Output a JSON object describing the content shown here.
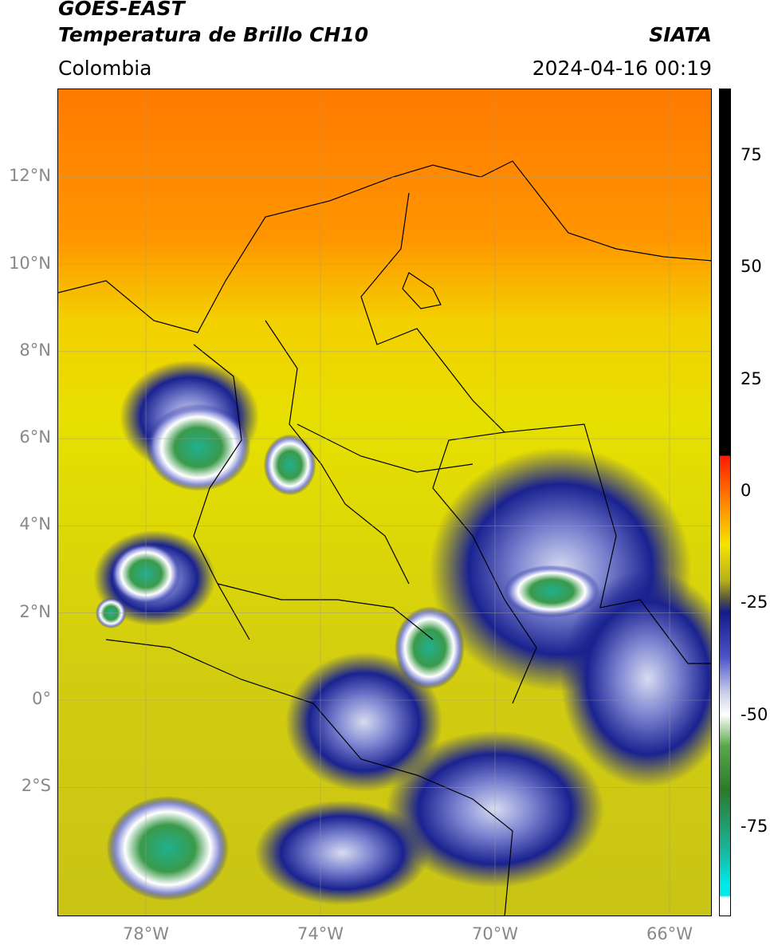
{
  "header": {
    "satellite": "GOES-EAST",
    "product": "Temperatura de Brillo CH10",
    "region": "Colombia",
    "organization": "SIATA",
    "timestamp": "2024-04-16 00:19"
  },
  "map": {
    "lon_range": [
      -80,
      -65
    ],
    "lat_range": [
      -5,
      14
    ],
    "lat_ticks": [
      {
        "value": 12,
        "label": "12°N"
      },
      {
        "value": 10,
        "label": "10°N"
      },
      {
        "value": 8,
        "label": "8°N"
      },
      {
        "value": 6,
        "label": "6°N"
      },
      {
        "value": 4,
        "label": "4°N"
      },
      {
        "value": 2,
        "label": "2°N"
      },
      {
        "value": 0,
        "label": "0°"
      },
      {
        "value": -2,
        "label": "2°S"
      }
    ],
    "lon_ticks": [
      {
        "value": -78,
        "label": "78°W"
      },
      {
        "value": -74,
        "label": "74°W"
      },
      {
        "value": -70,
        "label": "70°W"
      },
      {
        "value": -66,
        "label": "66°W"
      }
    ],
    "grid": true,
    "cloud_cores": [
      {
        "lon": -76.8,
        "lat": 5.8,
        "r_lon": 1.2,
        "r_lat": 1.0,
        "level": "cold"
      },
      {
        "lon": -78.0,
        "lat": 2.9,
        "r_lon": 0.8,
        "r_lat": 0.7,
        "level": "cold"
      },
      {
        "lon": -78.8,
        "lat": 2.0,
        "r_lon": 0.35,
        "r_lat": 0.35,
        "level": "cold"
      },
      {
        "lon": -71.5,
        "lat": 1.2,
        "r_lon": 0.8,
        "r_lat": 0.95,
        "level": "cold"
      },
      {
        "lon": -77.5,
        "lat": -3.4,
        "r_lon": 1.4,
        "r_lat": 1.2,
        "level": "cold"
      },
      {
        "lon": -74.7,
        "lat": 5.4,
        "r_lon": 0.6,
        "r_lat": 0.7,
        "level": "cold"
      },
      {
        "lon": -68.7,
        "lat": 2.5,
        "r_lon": 1.1,
        "r_lat": 0.6,
        "level": "cold"
      },
      {
        "lon": -68.5,
        "lat": 3.0,
        "r_lon": 3.0,
        "r_lat": 2.8,
        "level": "cool"
      },
      {
        "lon": -66.5,
        "lat": 0.5,
        "r_lon": 2.0,
        "r_lat": 2.5,
        "level": "cool"
      },
      {
        "lon": -73.0,
        "lat": -0.5,
        "r_lon": 1.8,
        "r_lat": 1.6,
        "level": "cool"
      },
      {
        "lon": -70.0,
        "lat": -2.5,
        "r_lon": 2.5,
        "r_lat": 1.8,
        "level": "cool"
      },
      {
        "lon": -73.5,
        "lat": -3.5,
        "r_lon": 2.0,
        "r_lat": 1.2,
        "level": "cool"
      },
      {
        "lon": -77.0,
        "lat": 6.5,
        "r_lon": 1.6,
        "r_lat": 1.3,
        "level": "cool"
      },
      {
        "lon": -77.8,
        "lat": 2.8,
        "r_lon": 1.4,
        "r_lat": 1.1,
        "level": "cool"
      }
    ]
  },
  "colorbar": {
    "range": [
      -95,
      90
    ],
    "ticks": [
      {
        "value": 75,
        "label": "75"
      },
      {
        "value": 50,
        "label": "50"
      },
      {
        "value": 25,
        "label": "25"
      },
      {
        "value": 0,
        "label": "0"
      },
      {
        "value": -25,
        "label": "-25"
      },
      {
        "value": -50,
        "label": "-50"
      },
      {
        "value": -75,
        "label": "-75"
      }
    ],
    "stops": [
      {
        "value": 90,
        "color": "#000000"
      },
      {
        "value": 8,
        "color": "#000000"
      },
      {
        "value": 7.9,
        "color": "#ff1a00"
      },
      {
        "value": -3,
        "color": "#ff8a00"
      },
      {
        "value": -12,
        "color": "#f5e400"
      },
      {
        "value": -20,
        "color": "#b6b01a"
      },
      {
        "value": -24,
        "color": "#5a5a3a"
      },
      {
        "value": -27,
        "color": "#141c8a"
      },
      {
        "value": -37,
        "color": "#4a52c8"
      },
      {
        "value": -45,
        "color": "#c8cde8"
      },
      {
        "value": -50,
        "color": "#ffffff"
      },
      {
        "value": -57,
        "color": "#5aa84a"
      },
      {
        "value": -67,
        "color": "#2a7a2a"
      },
      {
        "value": -80,
        "color": "#1ab49a"
      },
      {
        "value": -88,
        "color": "#00e8e8"
      },
      {
        "value": -90.5,
        "color": "#00e8e8"
      },
      {
        "value": -91,
        "color": "#ffffff"
      },
      {
        "value": -95,
        "color": "#ffffff"
      }
    ]
  }
}
